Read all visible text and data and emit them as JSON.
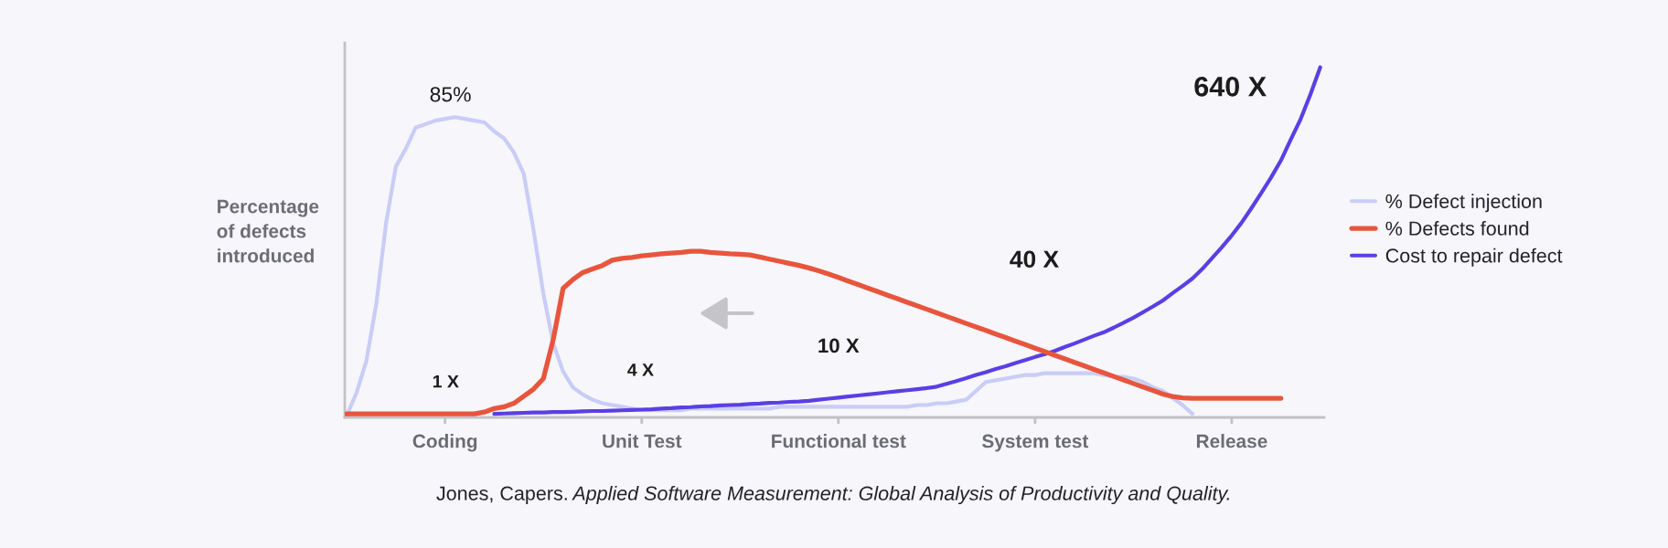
{
  "chart_data": {
    "type": "line",
    "ylabel": "Percentage\nof defects\nintroduced",
    "categories": [
      null,
      null,
      null,
      null,
      null,
      null,
      null,
      null,
      null,
      null,
      "Coding",
      null,
      null,
      null,
      null,
      null,
      null,
      null,
      null,
      null,
      null,
      null,
      null,
      null,
      null,
      null,
      null,
      null,
      null,
      null,
      "Unit Test",
      null,
      null,
      null,
      null,
      null,
      null,
      null,
      null,
      null,
      null,
      null,
      null,
      null,
      null,
      null,
      null,
      null,
      null,
      null,
      "Functional test",
      null,
      null,
      null,
      null,
      null,
      null,
      null,
      null,
      null,
      null,
      null,
      null,
      null,
      null,
      null,
      null,
      null,
      null,
      null,
      "System test",
      null,
      null,
      null,
      null,
      null,
      null,
      null,
      null,
      null,
      null,
      null,
      null,
      null,
      null,
      null,
      null,
      null,
      null,
      null,
      "Release",
      null,
      null,
      null,
      null,
      null,
      null,
      null,
      null,
      null
    ],
    "ylim": [
      0,
      106
    ],
    "legend": "right",
    "series": [
      {
        "name": "% Defect injection",
        "color": "#c9cdf6",
        "values": [
          0.5,
          7,
          16,
          32,
          55,
          71,
          76,
          82,
          83,
          84,
          84.5,
          85,
          84.5,
          84,
          83.5,
          81,
          79,
          75,
          69,
          53,
          35,
          21,
          13,
          8.5,
          6.5,
          5,
          4,
          3.5,
          3,
          2.5,
          2,
          2,
          2,
          2,
          2,
          2.5,
          2.5,
          2.5,
          2.5,
          2.5,
          2.5,
          2.5,
          2.5,
          2.5,
          3,
          3,
          3,
          3,
          3,
          3,
          3,
          3,
          3,
          3,
          3,
          3,
          3,
          3,
          3.5,
          3.5,
          4,
          4,
          4.5,
          5,
          7.5,
          10,
          10.5,
          11,
          11.5,
          12,
          12,
          12.5,
          12.5,
          12.5,
          12.5,
          12.5,
          12.5,
          12,
          11.5,
          11.5,
          11,
          10,
          8.5,
          7.5,
          5.5,
          3.5,
          1,
          null,
          null,
          null,
          null,
          null,
          null,
          null,
          null,
          null,
          null,
          null,
          null,
          null
        ],
        "value_labels": [
          null,
          null,
          null,
          null,
          null,
          null,
          null,
          null,
          null,
          null,
          null,
          "85%",
          null,
          null,
          null,
          null,
          null,
          null,
          null,
          null,
          null,
          null,
          null,
          null,
          null,
          null,
          null,
          null,
          null,
          null,
          null,
          null,
          null,
          null,
          null,
          null,
          null,
          null,
          null,
          null,
          null,
          null,
          null,
          null,
          null,
          null,
          null,
          null,
          null,
          null,
          null,
          null,
          null,
          null,
          null,
          null,
          null,
          null,
          null,
          null,
          null,
          null,
          null,
          null,
          null,
          null,
          null,
          null,
          null,
          null,
          null,
          null,
          null,
          null,
          null,
          null,
          null,
          null,
          null,
          null,
          null,
          null,
          null,
          null,
          null,
          null,
          null,
          null,
          null,
          null,
          null,
          null,
          null,
          null,
          null,
          null,
          null,
          null,
          null,
          null
        ]
      },
      {
        "name": "% Defects found",
        "color": "#e8553d",
        "values": [
          1,
          1,
          1,
          1,
          1,
          1,
          1,
          1,
          1,
          1,
          1,
          1,
          1,
          1,
          1.5,
          2.5,
          3,
          4,
          6,
          8,
          11,
          22,
          36.5,
          39,
          41,
          42,
          43,
          44.5,
          45,
          45.3,
          45.7,
          46,
          46.3,
          46.5,
          46.7,
          47,
          47,
          46.7,
          46.5,
          46.3,
          46.2,
          46,
          45.4,
          44.8,
          44.2,
          43.6,
          43,
          42.3,
          41.5,
          40.6,
          39.6,
          38.6,
          37.6,
          36.6,
          35.6,
          34.6,
          33.6,
          32.6,
          31.6,
          30.6,
          29.6,
          28.6,
          27.6,
          26.6,
          25.6,
          24.6,
          23.6,
          22.6,
          21.6,
          20.6,
          19.6,
          18.6,
          17.6,
          16.6,
          15.6,
          14.6,
          13.6,
          12.6,
          11.6,
          10.6,
          9.6,
          8.6,
          7.6,
          6.6,
          5.9,
          5.5,
          5.4,
          5.4,
          5.4,
          5.4,
          5.4,
          5.4,
          5.4,
          5.4,
          5.4,
          5.4,
          null,
          null,
          null,
          null
        ]
      },
      {
        "name": "Cost to repair defect",
        "color": "#5b3fe3",
        "values": [
          null,
          null,
          null,
          null,
          null,
          null,
          null,
          null,
          null,
          null,
          null,
          null,
          null,
          null,
          null,
          1,
          1.1,
          1.2,
          1.3,
          1.4,
          1.4,
          1.5,
          1.5,
          1.6,
          1.7,
          1.8,
          1.8,
          1.9,
          2,
          2.1,
          2.2,
          2.3,
          2.5,
          2.6,
          2.8,
          2.9,
          3.1,
          3.2,
          3.4,
          3.5,
          3.6,
          3.8,
          3.9,
          4.1,
          4.2,
          4.4,
          4.5,
          4.7,
          5,
          5.3,
          5.6,
          5.9,
          6.2,
          6.5,
          6.8,
          7.1,
          7.4,
          7.7,
          8,
          8.3,
          8.7,
          9.5,
          10.3,
          11.1,
          12,
          12.8,
          13.7,
          14.5,
          15.4,
          16.2,
          17.1,
          17.9,
          18.8,
          19.9,
          20.9,
          22,
          23.1,
          24.1,
          25.4,
          26.8,
          28.2,
          29.8,
          31.4,
          33.1,
          35.2,
          37.2,
          39.3,
          42,
          45.1,
          48.2,
          51.5,
          55.1,
          59.2,
          63.5,
          67.9,
          72.7,
          78.6,
          84.4,
          91.4,
          99.1
        ]
      }
    ],
    "annotations": [
      "1 X",
      "4 X",
      "10 X",
      "40 X",
      "640 X",
      "Jones, Capers.",
      "Applied Software Measurement: Global Analysis of Productivity and Quality."
    ]
  }
}
